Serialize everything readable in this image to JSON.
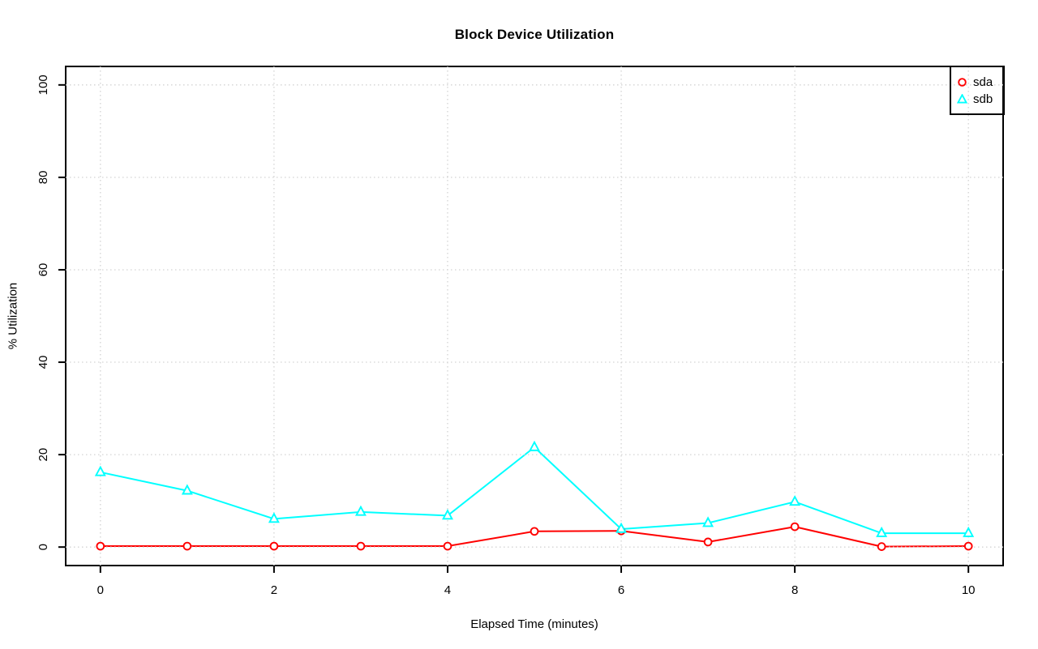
{
  "chart_data": {
    "type": "line",
    "title": "Block Device Utilization",
    "xlabel": "Elapsed Time (minutes)",
    "ylabel": "% Utilization",
    "x": [
      0,
      1,
      2,
      3,
      4,
      5,
      6,
      7,
      8,
      9,
      10
    ],
    "series": [
      {
        "name": "sda",
        "color": "#ff0000",
        "marker": "circle",
        "values": [
          0.2,
          0.2,
          0.2,
          0.2,
          0.2,
          3.4,
          3.5,
          1.1,
          4.4,
          0.1,
          0.2
        ]
      },
      {
        "name": "sdb",
        "color": "#00ffff",
        "marker": "triangle",
        "values": [
          16.2,
          12.2,
          6.1,
          7.6,
          6.8,
          21.6,
          3.9,
          5.2,
          9.8,
          3.0,
          3.0
        ]
      }
    ],
    "xticks": [
      0,
      2,
      4,
      6,
      8,
      10
    ],
    "yticks": [
      0,
      20,
      40,
      60,
      80,
      100
    ],
    "xlim": [
      0,
      10
    ],
    "ylim": [
      0,
      100
    ],
    "grid": {
      "style": "dotted",
      "color": "#d3d3d3",
      "at": "major-ticks"
    },
    "axis_color": "#000000",
    "background": "#ffffff",
    "legend": {
      "position": "top-right",
      "border": true,
      "entries": [
        {
          "label": "sda",
          "color": "#ff0000",
          "marker": "circle"
        },
        {
          "label": "sdb",
          "color": "#00ffff",
          "marker": "triangle"
        }
      ]
    }
  }
}
